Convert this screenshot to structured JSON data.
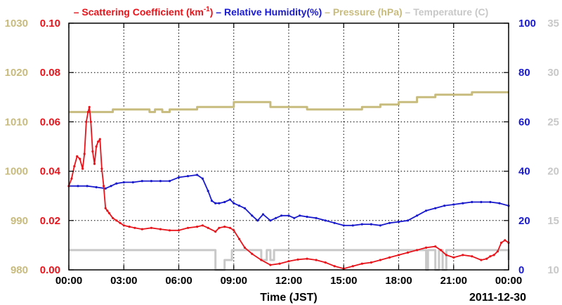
{
  "chart_data": {
    "type": "line",
    "legend": {
      "placement": "top",
      "entries": [
        {
          "series_ref": 0,
          "prefix": "– ",
          "text": "Scattering Coefficient (km",
          "sup": "-1",
          "suffix": ")",
          "color": "#e8141c"
        },
        {
          "series_ref": 1,
          "prefix": " – ",
          "text": "Relative Humidity(%)",
          "color": "#1a1acd"
        },
        {
          "series_ref": 2,
          "prefix": " – ",
          "text": "Pressure (hPa)",
          "color": "#c8bb7e"
        },
        {
          "series_ref": 3,
          "prefix": " – ",
          "text": "Temperature (C)",
          "color": "#c8c8c8"
        }
      ]
    },
    "xlabel": "Time (JST)",
    "date_label": "2011-12-30",
    "grid": true,
    "x_range_hours": [
      0,
      24
    ],
    "x_ticks": [
      {
        "hour": 0,
        "label": "00:00"
      },
      {
        "hour": 3,
        "label": "03:00"
      },
      {
        "hour": 6,
        "label": "06:00"
      },
      {
        "hour": 9,
        "label": "09:00"
      },
      {
        "hour": 12,
        "label": "12:00"
      },
      {
        "hour": 15,
        "label": "15:00"
      },
      {
        "hour": 18,
        "label": "18:00"
      },
      {
        "hour": 21,
        "label": "21:00"
      },
      {
        "hour": 24,
        "label": "00:00"
      }
    ],
    "axes": [
      {
        "id": "pressure",
        "side": "left-outer",
        "range": [
          980,
          1030
        ],
        "ticks": [
          980,
          990,
          1000,
          1010,
          1020,
          1030
        ],
        "tick_labels": [
          "980",
          "990",
          "1000",
          "1010",
          "1020",
          "1030"
        ],
        "color": "#c8bb7e"
      },
      {
        "id": "scattering",
        "side": "left-inner",
        "range": [
          0,
          0.1
        ],
        "ticks": [
          0,
          0.02,
          0.04,
          0.06,
          0.08,
          0.1
        ],
        "tick_labels": [
          "0.00",
          "0.02",
          "0.04",
          "0.06",
          "0.08",
          "0.10"
        ],
        "color": "#e8141c"
      },
      {
        "id": "humidity",
        "side": "right-inner",
        "range": [
          0,
          100
        ],
        "ticks": [
          0,
          20,
          40,
          60,
          80,
          100
        ],
        "tick_labels": [
          "0",
          "20",
          "40",
          "60",
          "80",
          "100"
        ],
        "color": "#1a1acd"
      },
      {
        "id": "temperature",
        "side": "right-outer",
        "range": [
          10,
          35
        ],
        "ticks": [
          10,
          15,
          20,
          25,
          30,
          35
        ],
        "tick_labels": [
          "10",
          "15",
          "20",
          "25",
          "30",
          "35"
        ],
        "color": "#c8c8c8"
      }
    ],
    "series": [
      {
        "name": "Scattering Coefficient (km-1)",
        "axis": "scattering",
        "color": "#e8141c",
        "markers": true,
        "x_hours": [
          0,
          0.15,
          0.3,
          0.45,
          0.6,
          0.75,
          0.85,
          0.95,
          1.05,
          1.12,
          1.2,
          1.3,
          1.4,
          1.5,
          1.6,
          1.7,
          1.8,
          1.9,
          2.0,
          2.1,
          2.2,
          2.4,
          2.6,
          2.8,
          3.0,
          3.3,
          3.6,
          4.0,
          4.5,
          5.0,
          5.5,
          6.0,
          6.5,
          7.0,
          7.3,
          7.6,
          8.0,
          8.2,
          8.5,
          8.8,
          9.0,
          9.3,
          9.6,
          10.0,
          10.5,
          11.0,
          11.5,
          12.0,
          12.5,
          13.0,
          13.5,
          14.0,
          14.5,
          15.0,
          15.5,
          16.0,
          16.5,
          17.0,
          17.5,
          18.0,
          18.5,
          19.0,
          19.5,
          20.0,
          20.3,
          20.6,
          21.0,
          21.5,
          22.0,
          22.5,
          22.8,
          23.0,
          23.2,
          23.4,
          23.6,
          23.8,
          24.0
        ],
        "values": [
          0.034,
          0.037,
          0.042,
          0.046,
          0.045,
          0.041,
          0.047,
          0.06,
          0.064,
          0.066,
          0.06,
          0.048,
          0.043,
          0.05,
          0.052,
          0.053,
          0.041,
          0.034,
          0.025,
          0.024,
          0.023,
          0.021,
          0.02,
          0.019,
          0.018,
          0.0175,
          0.017,
          0.0165,
          0.017,
          0.0165,
          0.016,
          0.016,
          0.017,
          0.0175,
          0.018,
          0.017,
          0.0155,
          0.017,
          0.0175,
          0.017,
          0.016,
          0.0125,
          0.009,
          0.0065,
          0.004,
          0.002,
          0.0025,
          0.0035,
          0.0042,
          0.0045,
          0.004,
          0.003,
          0.0015,
          0.0005,
          0.0015,
          0.0025,
          0.003,
          0.004,
          0.005,
          0.006,
          0.007,
          0.008,
          0.009,
          0.0095,
          0.008,
          0.006,
          0.005,
          0.006,
          0.0055,
          0.004,
          0.0045,
          0.0055,
          0.006,
          0.0075,
          0.011,
          0.012,
          0.011
        ]
      },
      {
        "name": "Relative Humidity(%)",
        "axis": "humidity",
        "color": "#1a1acd",
        "markers": true,
        "x_hours": [
          0,
          0.5,
          1.0,
          1.5,
          2.0,
          2.3,
          2.6,
          3.0,
          3.5,
          4.0,
          4.5,
          5.0,
          5.5,
          6.0,
          6.5,
          7.0,
          7.3,
          7.6,
          7.8,
          8.0,
          8.2,
          8.5,
          8.8,
          9.0,
          9.3,
          9.6,
          10.0,
          10.3,
          10.6,
          11.0,
          11.3,
          11.6,
          12.0,
          12.3,
          12.6,
          13.0,
          13.5,
          14.0,
          14.5,
          15.0,
          15.5,
          16.0,
          16.5,
          17.0,
          17.5,
          18.0,
          18.5,
          19.0,
          19.5,
          20.0,
          20.5,
          21.0,
          21.5,
          22.0,
          22.5,
          23.0,
          23.5,
          24.0
        ],
        "values": [
          34,
          34,
          34,
          33.5,
          33,
          34,
          35,
          35.5,
          35.5,
          36,
          36,
          36,
          36,
          37.5,
          38,
          38.5,
          37,
          32,
          28,
          27,
          27,
          27.5,
          28.5,
          27,
          26,
          25,
          22,
          20,
          22.5,
          20,
          21,
          22,
          22,
          21,
          22,
          21.5,
          21,
          20,
          19,
          18,
          18,
          18.5,
          18.5,
          18,
          19,
          19.5,
          20,
          22,
          24,
          25,
          26,
          26.5,
          27,
          27.5,
          27.5,
          27.5,
          27,
          26
        ]
      },
      {
        "name": "Pressure (hPa)",
        "axis": "pressure",
        "color": "#c8bb7e",
        "markers": false,
        "x_hours": [
          0,
          1.0,
          1.8,
          2.4,
          3.0,
          4.2,
          4.4,
          4.7,
          5.1,
          5.5,
          6.0,
          6.5,
          7.0,
          8.0,
          9.0,
          10.0,
          11.0,
          12.0,
          13.0,
          14.0,
          15.0,
          16.0,
          17.0,
          18.0,
          19.0,
          20.0,
          21.0,
          22.0,
          23.0,
          24.0
        ],
        "values": [
          1012,
          1012,
          1012,
          1012.5,
          1012.5,
          1012.5,
          1012,
          1012.5,
          1012,
          1012.5,
          1012.5,
          1012.5,
          1013,
          1013,
          1014,
          1014,
          1013,
          1013,
          1012.5,
          1012.5,
          1012.5,
          1013,
          1013.5,
          1014,
          1015,
          1015.5,
          1015.5,
          1016,
          1016,
          1016
        ]
      },
      {
        "name": "Temperature (C)",
        "axis": "temperature",
        "color": "#c8c8c8",
        "markers": false,
        "x_hours": [
          0,
          2.0,
          4.0,
          6.0,
          7.5,
          7.8,
          8.0,
          8.1,
          8.4,
          8.5,
          8.8,
          8.9,
          9.5,
          10.0,
          10.5,
          10.6,
          10.8,
          11.0,
          11.2,
          11.5,
          12.0,
          13.0,
          14.0,
          15.0,
          16.0,
          17.0,
          18.0,
          19.0,
          19.4,
          19.5,
          19.6,
          19.8,
          20.0,
          20.2,
          20.4,
          20.6,
          21.0,
          22.0,
          23.0,
          23.8,
          24.0
        ],
        "values": [
          12,
          12,
          12,
          12,
          12,
          12,
          10,
          10,
          10,
          11,
          11,
          12,
          12,
          12,
          11,
          11,
          12,
          11,
          12,
          12,
          12,
          12,
          12,
          12,
          12,
          12,
          12,
          12,
          12,
          10,
          12,
          12,
          10,
          12,
          10,
          12,
          12,
          12,
          12,
          12,
          11
        ]
      }
    ]
  }
}
